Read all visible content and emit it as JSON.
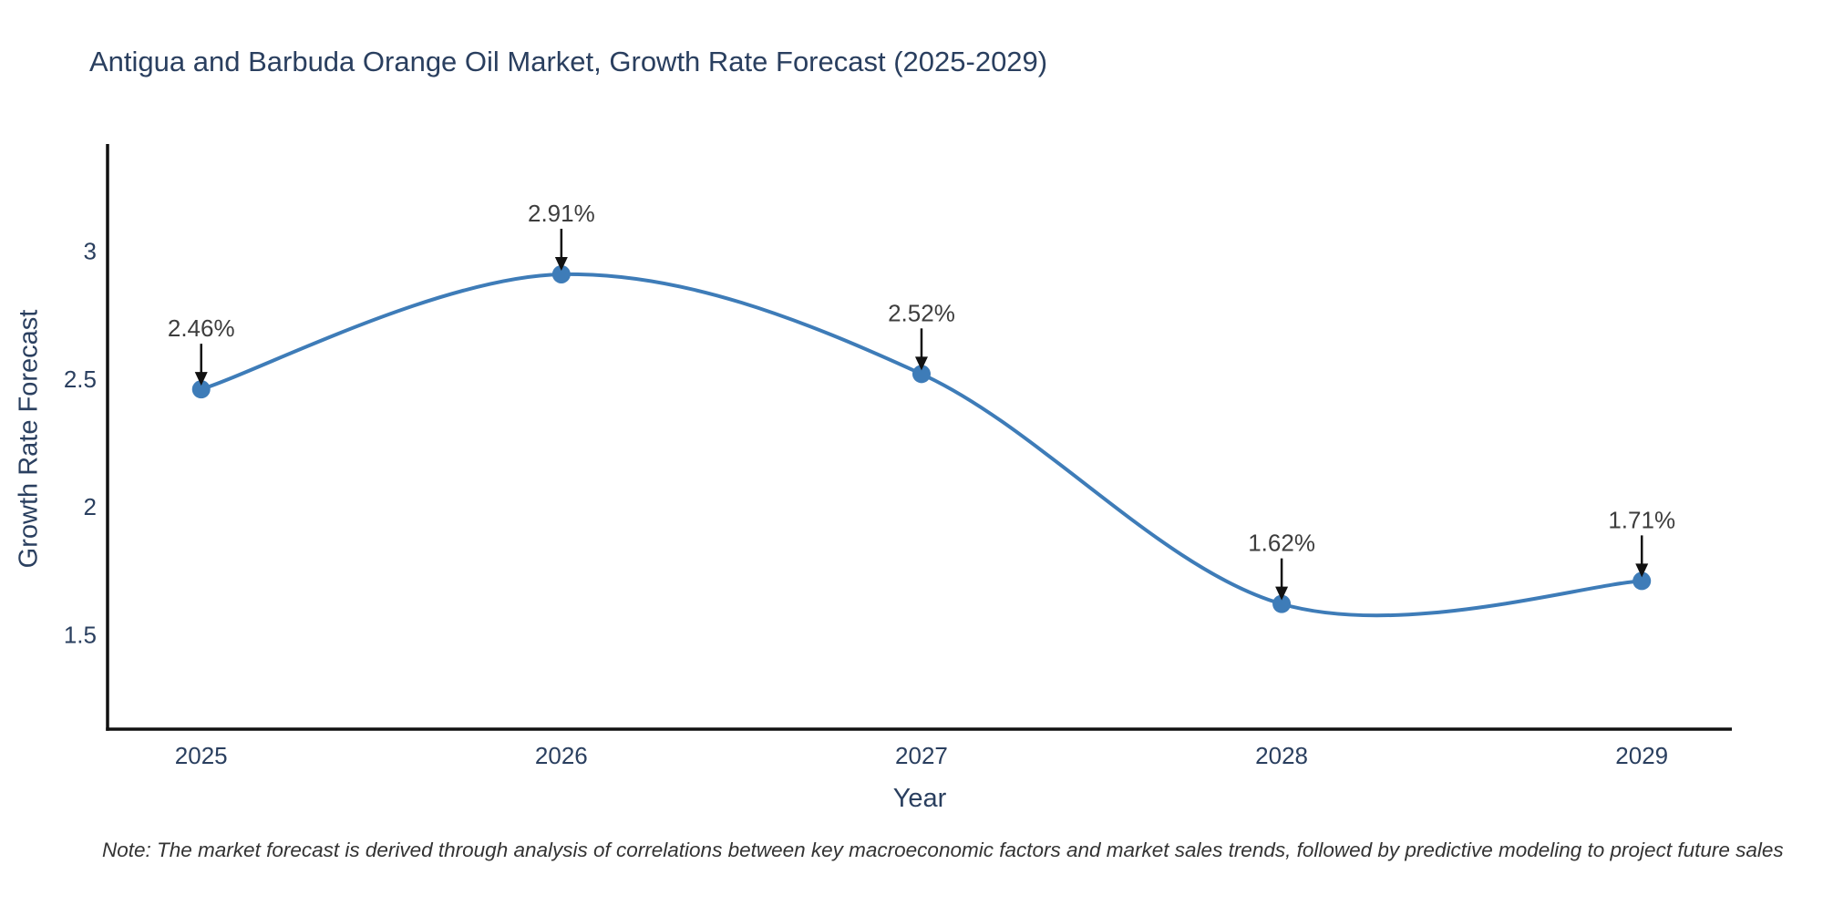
{
  "title": "Antigua and Barbuda Orange Oil Market, Growth Rate Forecast (2025-2029)",
  "note": "Note: The market forecast is derived through analysis of correlations between key macroeconomic factors and market sales trends, followed by predictive modeling to project future sales",
  "chart_data": {
    "type": "line",
    "title": "Antigua and Barbuda Orange Oil Market, Growth Rate Forecast (2025-2029)",
    "xlabel": "Year",
    "ylabel": "Growth Rate Forecast",
    "x": [
      2025,
      2026,
      2027,
      2028,
      2029
    ],
    "values": [
      2.46,
      2.91,
      2.52,
      1.62,
      1.71
    ],
    "point_labels": [
      "2.46%",
      "2.91%",
      "2.52%",
      "1.62%",
      "1.71%"
    ],
    "xticks": [
      {
        "value": 2025,
        "label": "2025"
      },
      {
        "value": 2026,
        "label": "2026"
      },
      {
        "value": 2027,
        "label": "2027"
      },
      {
        "value": 2028,
        "label": "2028"
      },
      {
        "value": 2029,
        "label": "2029"
      }
    ],
    "yticks": [
      {
        "value": 3,
        "label": "3"
      },
      {
        "value": 2.5,
        "label": "2.5"
      },
      {
        "value": 2,
        "label": "2"
      },
      {
        "value": 1.5,
        "label": "1.5"
      }
    ],
    "xlim": [
      2024.74,
      2029.25
    ],
    "ylim": [
      1.13,
      3.42
    ],
    "grid": false,
    "legend": "none",
    "line_shape": "spline",
    "line_color": "#3e7cb8",
    "marker_color": "#3e7cb8",
    "axis_color": "#111111",
    "annotation_arrow_color": "#111111",
    "annotation_text_color": "#3d3d3d",
    "text_color": "#2a3f5f",
    "background_color": "#ffffff"
  }
}
